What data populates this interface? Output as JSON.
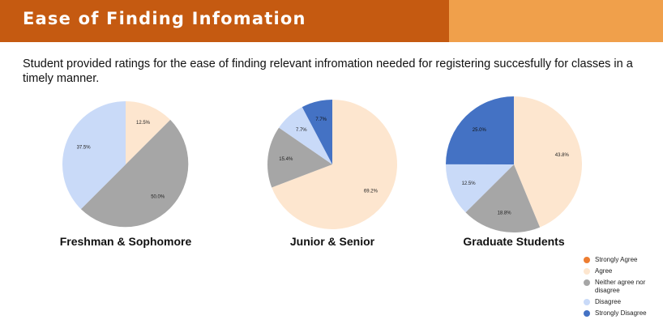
{
  "header": {
    "title": "Ease of Finding Infomation"
  },
  "description": "Student provided ratings for the ease of finding relevant infromation needed for registering succesfully for classes in a timely manner.",
  "colors": {
    "header_main": "#c55a11",
    "header_side": "#f0a04b",
    "strongly_agree": "#ed7d31",
    "agree": "#fde6cf",
    "neither": "#a6a6a6",
    "disagree": "#c9daf8",
    "strongly_disagree": "#4472c4"
  },
  "legend": [
    {
      "label": "Strongly Agree",
      "color": "#ed7d31"
    },
    {
      "label": "Agree",
      "color": "#fde6cf"
    },
    {
      "label": "Neither agree nor disagree",
      "color": "#a6a6a6"
    },
    {
      "label": "Disagree",
      "color": "#c9daf8"
    },
    {
      "label": "Strongly Disagree",
      "color": "#4472c4"
    }
  ],
  "chart_data": [
    {
      "type": "pie",
      "title": "Freshman & Sophomore",
      "slices": [
        {
          "category": "Agree",
          "value": 12.5,
          "label": "12.5%"
        },
        {
          "category": "Neither agree nor disagree",
          "value": 50.0,
          "label": "50.0%"
        },
        {
          "category": "Disagree",
          "value": 37.5,
          "label": "37.5%"
        }
      ]
    },
    {
      "type": "pie",
      "title": "Junior & Senior",
      "slices": [
        {
          "category": "Agree",
          "value": 69.2,
          "label": "69.2%"
        },
        {
          "category": "Neither agree nor disagree",
          "value": 15.4,
          "label": "15.4%"
        },
        {
          "category": "Disagree",
          "value": 7.7,
          "label": "7.7%"
        },
        {
          "category": "Strongly Disagree",
          "value": 7.7,
          "label": "7.7%"
        }
      ]
    },
    {
      "type": "pie",
      "title": "Graduate Students",
      "slices": [
        {
          "category": "Agree",
          "value": 43.8,
          "label": "43.8%"
        },
        {
          "category": "Neither agree nor disagree",
          "value": 18.8,
          "label": "18.8%"
        },
        {
          "category": "Disagree",
          "value": 12.5,
          "label": "12.5%"
        },
        {
          "category": "Strongly Disagree",
          "value": 25.0,
          "label": "25.0%"
        }
      ]
    }
  ]
}
